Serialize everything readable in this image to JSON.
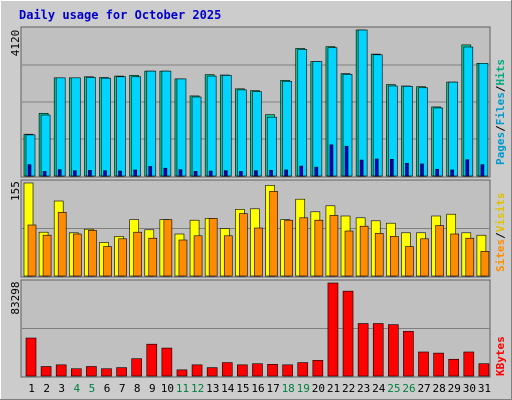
{
  "title": "Daily usage for October 2025",
  "colors": {
    "background": "#cccccc",
    "plot": "#c0c0c0",
    "title": "#0000cc",
    "grid": "#808080",
    "hits": "#00cc99",
    "files": "#00d4ff",
    "pages": "#0000cc",
    "visits": "#ffff00",
    "sites": "#ff8c00",
    "kbytes": "#ff0000",
    "weekday_label": "#000000",
    "weekend_label": "#008040"
  },
  "chart_data": [
    {
      "type": "bar",
      "panel": "hits-files-pages",
      "max_label": "4120",
      "ymax": 4120,
      "legend": [
        "Pages",
        "/",
        "Files",
        "/",
        "Hits"
      ],
      "categories": [
        "1",
        "2",
        "3",
        "4",
        "5",
        "6",
        "7",
        "8",
        "9",
        "10",
        "11",
        "12",
        "13",
        "14",
        "15",
        "16",
        "17",
        "18",
        "19",
        "20",
        "21",
        "22",
        "23",
        "24",
        "25",
        "26",
        "27",
        "28",
        "29",
        "30",
        "31"
      ],
      "weekend_days": [
        "4",
        "5",
        "11",
        "12",
        "18",
        "19",
        "25",
        "26"
      ],
      "series": [
        {
          "name": "Hits",
          "values": [
            1180,
            1770,
            2770,
            2770,
            2800,
            2780,
            2820,
            2840,
            2960,
            2960,
            2740,
            2260,
            2860,
            2850,
            2460,
            2410,
            1730,
            2700,
            3600,
            3230,
            3650,
            2890,
            4120,
            3440,
            2580,
            2540,
            2520,
            1950,
            2650,
            3700,
            3180
          ]
        },
        {
          "name": "Files",
          "values": [
            1160,
            1720,
            2770,
            2770,
            2780,
            2760,
            2800,
            2800,
            2960,
            2960,
            2740,
            2230,
            2820,
            2840,
            2430,
            2380,
            1660,
            2670,
            3570,
            3230,
            3620,
            2870,
            4120,
            3420,
            2540,
            2530,
            2490,
            1920,
            2650,
            3640,
            3180
          ]
        },
        {
          "name": "Pages",
          "values": [
            320,
            130,
            180,
            150,
            160,
            150,
            140,
            170,
            270,
            220,
            180,
            130,
            140,
            150,
            130,
            150,
            160,
            170,
            280,
            250,
            880,
            840,
            450,
            480,
            470,
            360,
            340,
            190,
            170,
            460,
            320
          ]
        }
      ]
    },
    {
      "type": "bar",
      "panel": "visits-sites",
      "max_label": "155",
      "ymax": 155,
      "legend": [
        "Sites",
        "/",
        "Visits"
      ],
      "categories": [
        "1",
        "2",
        "3",
        "4",
        "5",
        "6",
        "7",
        "8",
        "9",
        "10",
        "11",
        "12",
        "13",
        "14",
        "15",
        "16",
        "17",
        "18",
        "19",
        "20",
        "21",
        "22",
        "23",
        "24",
        "25",
        "26",
        "27",
        "28",
        "29",
        "30",
        "31"
      ],
      "series": [
        {
          "name": "Visits",
          "values": [
            155,
            73,
            125,
            72,
            78,
            56,
            66,
            94,
            77,
            94,
            70,
            93,
            96,
            79,
            111,
            112,
            151,
            94,
            128,
            107,
            117,
            100,
            97,
            92,
            88,
            72,
            72,
            100,
            103,
            72,
            68
          ]
        },
        {
          "name": "Sites",
          "values": [
            85,
            68,
            106,
            70,
            76,
            49,
            62,
            73,
            63,
            94,
            60,
            67,
            96,
            67,
            104,
            80,
            141,
            93,
            97,
            93,
            101,
            75,
            83,
            71,
            66,
            49,
            62,
            84,
            70,
            63,
            41
          ]
        }
      ]
    },
    {
      "type": "bar",
      "panel": "kbytes",
      "max_label": "83298",
      "ymax": 83298,
      "legend": [
        "KBytes"
      ],
      "categories": [
        "1",
        "2",
        "3",
        "4",
        "5",
        "6",
        "7",
        "8",
        "9",
        "10",
        "11",
        "12",
        "13",
        "14",
        "15",
        "16",
        "17",
        "18",
        "19",
        "20",
        "21",
        "22",
        "23",
        "24",
        "25",
        "26",
        "27",
        "28",
        "29",
        "30",
        "31"
      ],
      "series": [
        {
          "name": "KBytes",
          "values": [
            34000,
            8500,
            10000,
            6500,
            8500,
            6500,
            7500,
            15500,
            28500,
            25000,
            5500,
            10000,
            7500,
            12000,
            10000,
            11000,
            10500,
            10000,
            12000,
            14000,
            83298,
            76000,
            47000,
            47000,
            46000,
            40000,
            21500,
            20500,
            15000,
            21500,
            11000
          ]
        }
      ]
    }
  ]
}
